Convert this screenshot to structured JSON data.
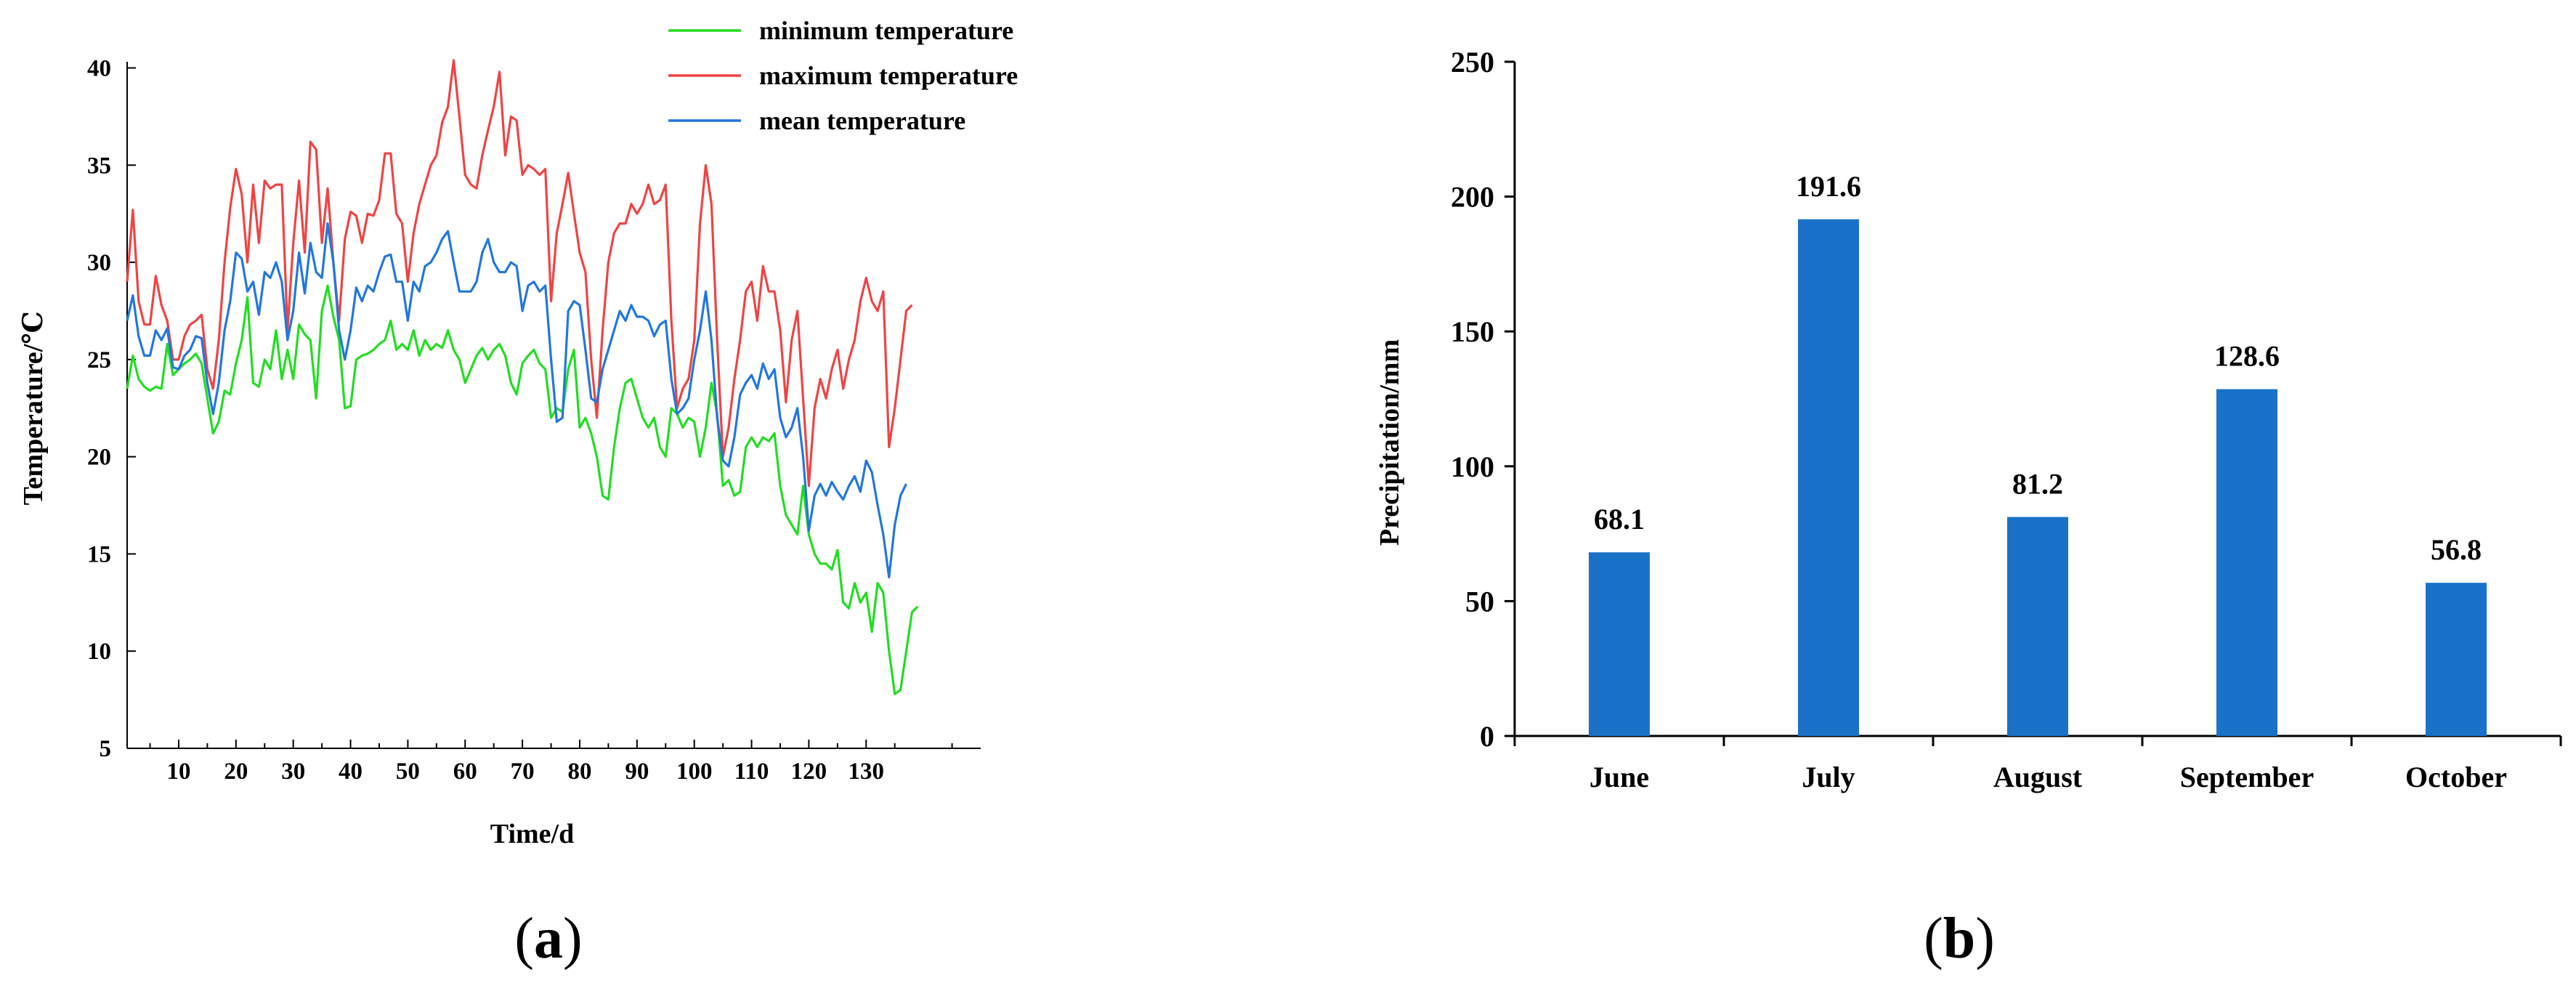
{
  "chart_data": [
    {
      "type": "line",
      "panel_label": "a",
      "title": "",
      "xlabel": "Time/d",
      "ylabel": "Temperature/℃",
      "xlim": [
        1,
        150
      ],
      "ylim": [
        5,
        42
      ],
      "x_ticks": [
        10,
        20,
        30,
        40,
        50,
        60,
        70,
        80,
        90,
        100,
        110,
        120,
        130
      ],
      "y_ticks": [
        5,
        10,
        15,
        20,
        25,
        30,
        35,
        40
      ],
      "legend_position": "top-right",
      "grid": false,
      "series": [
        {
          "name": "minimum temperature",
          "color": "#22dd22",
          "values": [
            23.5,
            25.2,
            24.0,
            23.6,
            23.4,
            23.6,
            23.5,
            25.8,
            24.2,
            24.5,
            24.8,
            25.0,
            25.3,
            24.8,
            23.0,
            21.2,
            21.8,
            23.4,
            23.2,
            24.8,
            26.0,
            28.2,
            23.8,
            23.6,
            25.0,
            24.5,
            26.5,
            24.0,
            25.5,
            24.0,
            26.8,
            26.3,
            26.0,
            23.0,
            27.5,
            28.8,
            27.2,
            26.0,
            22.5,
            22.6,
            25.0,
            25.2,
            25.3,
            25.5,
            25.8,
            26.0,
            27.0,
            25.5,
            25.8,
            25.5,
            26.5,
            25.2,
            26.0,
            25.5,
            25.8,
            25.6,
            26.5,
            25.5,
            25.0,
            23.8,
            24.5,
            25.2,
            25.6,
            25.0,
            25.5,
            25.8,
            25.2,
            23.8,
            23.2,
            24.8,
            25.2,
            25.5,
            24.8,
            24.5,
            22.0,
            22.5,
            22.3,
            24.5,
            25.5,
            21.5,
            22.0,
            21.2,
            20.0,
            18.0,
            17.8,
            20.5,
            22.5,
            23.8,
            24.0,
            23.0,
            22.0,
            21.5,
            22.0,
            20.5,
            20.0,
            22.5,
            22.2,
            21.5,
            22.0,
            21.8,
            20.0,
            21.5,
            23.8,
            22.2,
            18.5,
            18.8,
            18.0,
            18.2,
            20.5,
            21.0,
            20.5,
            21.0,
            20.8,
            21.2,
            18.5,
            17.0,
            16.5,
            16.0,
            18.5,
            16.0,
            15.0,
            14.5,
            14.5,
            14.2,
            15.2,
            12.5,
            12.2,
            13.5,
            12.5,
            13.0,
            11.0,
            13.5,
            13.0,
            10.0,
            7.8,
            8.0,
            10.0,
            12.0,
            12.3
          ]
        },
        {
          "name": "maximum temperature",
          "color": "#ee4444",
          "values": [
            29.0,
            32.7,
            28.0,
            26.8,
            26.8,
            29.3,
            27.8,
            27.0,
            25.0,
            25.0,
            26.2,
            26.8,
            27.0,
            27.3,
            24.5,
            23.5,
            26.0,
            30.0,
            32.8,
            34.8,
            33.5,
            30.0,
            34.0,
            31.0,
            34.2,
            33.8,
            34.0,
            34.0,
            26.5,
            31.0,
            34.2,
            30.5,
            36.2,
            35.8,
            31.0,
            33.8,
            30.0,
            27.0,
            31.2,
            32.6,
            32.4,
            31.0,
            32.5,
            32.4,
            33.2,
            35.6,
            35.6,
            32.5,
            32.0,
            29.0,
            31.5,
            33.0,
            34.0,
            35.0,
            35.5,
            37.2,
            38.0,
            40.4,
            37.5,
            34.5,
            34.0,
            33.8,
            35.5,
            36.8,
            38.0,
            39.8,
            35.5,
            37.5,
            37.3,
            34.5,
            35.0,
            34.8,
            34.5,
            34.8,
            28.0,
            31.5,
            33.0,
            34.6,
            32.5,
            30.5,
            29.5,
            25.0,
            22.0,
            26.5,
            30.0,
            31.5,
            32.0,
            32.0,
            33.0,
            32.5,
            33.0,
            34.0,
            33.0,
            33.2,
            34.0,
            27.0,
            22.5,
            23.5,
            24.0,
            26.0,
            32.0,
            35.0,
            33.0,
            26.0,
            20.0,
            21.5,
            24.0,
            26.0,
            28.5,
            29.0,
            27.0,
            29.8,
            28.5,
            28.5,
            26.5,
            22.8,
            26.0,
            27.5,
            23.0,
            18.5,
            22.5,
            24.0,
            23.0,
            24.5,
            25.5,
            23.5,
            25.0,
            26.0,
            28.0,
            29.2,
            28.0,
            27.5,
            28.5,
            20.5,
            22.5,
            25.0,
            27.5,
            27.8
          ]
        },
        {
          "name": "mean temperature",
          "color": "#2277dd",
          "values": [
            27.0,
            28.3,
            26.2,
            25.2,
            25.2,
            26.5,
            26.0,
            26.6,
            24.6,
            24.5,
            25.2,
            25.5,
            26.2,
            26.1,
            23.8,
            22.2,
            23.8,
            26.5,
            28.0,
            30.5,
            30.2,
            28.5,
            29.0,
            27.3,
            29.5,
            29.2,
            30.0,
            29.0,
            26.0,
            27.5,
            30.5,
            28.4,
            31.0,
            29.5,
            29.2,
            32.0,
            30.0,
            26.5,
            25.0,
            26.5,
            28.7,
            28.0,
            28.8,
            28.5,
            29.5,
            30.3,
            30.4,
            29.0,
            29.0,
            27.0,
            29.0,
            28.5,
            29.8,
            30.0,
            30.5,
            31.2,
            31.6,
            30.0,
            28.5,
            28.5,
            28.5,
            29.0,
            30.5,
            31.2,
            30.0,
            29.5,
            29.5,
            30.0,
            29.8,
            27.5,
            28.8,
            29.0,
            28.5,
            28.8,
            25.0,
            21.8,
            22.0,
            27.5,
            28.0,
            27.8,
            25.5,
            23.0,
            22.8,
            24.5,
            25.5,
            26.5,
            27.5,
            27.0,
            27.8,
            27.2,
            27.2,
            27.0,
            26.2,
            26.8,
            27.0,
            24.0,
            22.2,
            22.5,
            23.0,
            25.0,
            26.5,
            28.5,
            26.0,
            22.0,
            19.8,
            19.5,
            21.0,
            23.2,
            23.8,
            24.2,
            23.5,
            24.8,
            24.0,
            24.5,
            22.0,
            21.0,
            21.5,
            22.5,
            20.0,
            16.2,
            18.0,
            18.6,
            18.0,
            18.7,
            18.2,
            17.8,
            18.5,
            19.0,
            18.2,
            19.8,
            19.2,
            17.5,
            16.0,
            13.8,
            16.5,
            18.0,
            18.6
          ]
        }
      ]
    },
    {
      "type": "bar",
      "panel_label": "b",
      "title": "",
      "xlabel": "",
      "ylabel": "Precipitation/mm",
      "categories": [
        "June",
        "July",
        "August",
        "September",
        "October"
      ],
      "values": [
        68.1,
        191.6,
        81.2,
        128.6,
        56.8
      ],
      "data_labels": [
        "68.1",
        "191.6",
        "81.2",
        "128.6",
        "56.8"
      ],
      "y_ticks": [
        0,
        50,
        100,
        150,
        200,
        250
      ],
      "ylim": [
        0,
        250
      ],
      "bar_color": "#1a72c8",
      "grid": false
    }
  ]
}
